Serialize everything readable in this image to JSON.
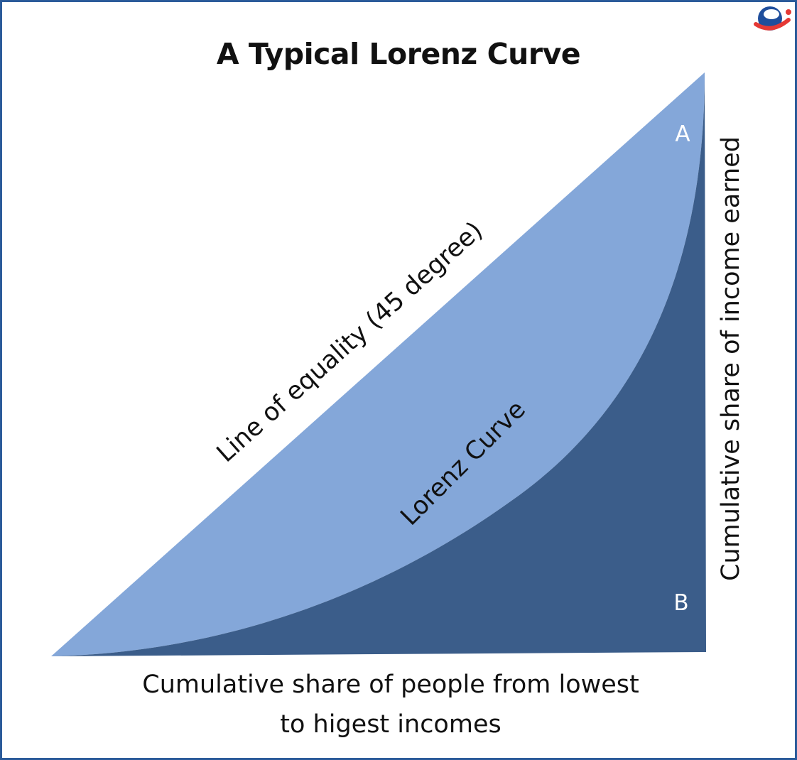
{
  "title": "A Typical Lorenz Curve",
  "logo": {
    "icon": "brand-logo-icon",
    "colors": {
      "blue": "#1f4e9c",
      "red": "#e53935"
    }
  },
  "diagram": {
    "line_of_equality_label": "Line of equality (45 degree)",
    "lorenz_curve_label": "Lorenz Curve",
    "area_a_label": "A",
    "area_b_label": "B",
    "x_axis_label_line1": "Cumulative share of people from lowest",
    "x_axis_label_line2": "to higest incomes",
    "y_axis_label": "Cumulative share of income earned",
    "colors": {
      "area_a": "#84a7d9",
      "area_b": "#3b5d8a",
      "frame": "#2b5b9a"
    }
  }
}
